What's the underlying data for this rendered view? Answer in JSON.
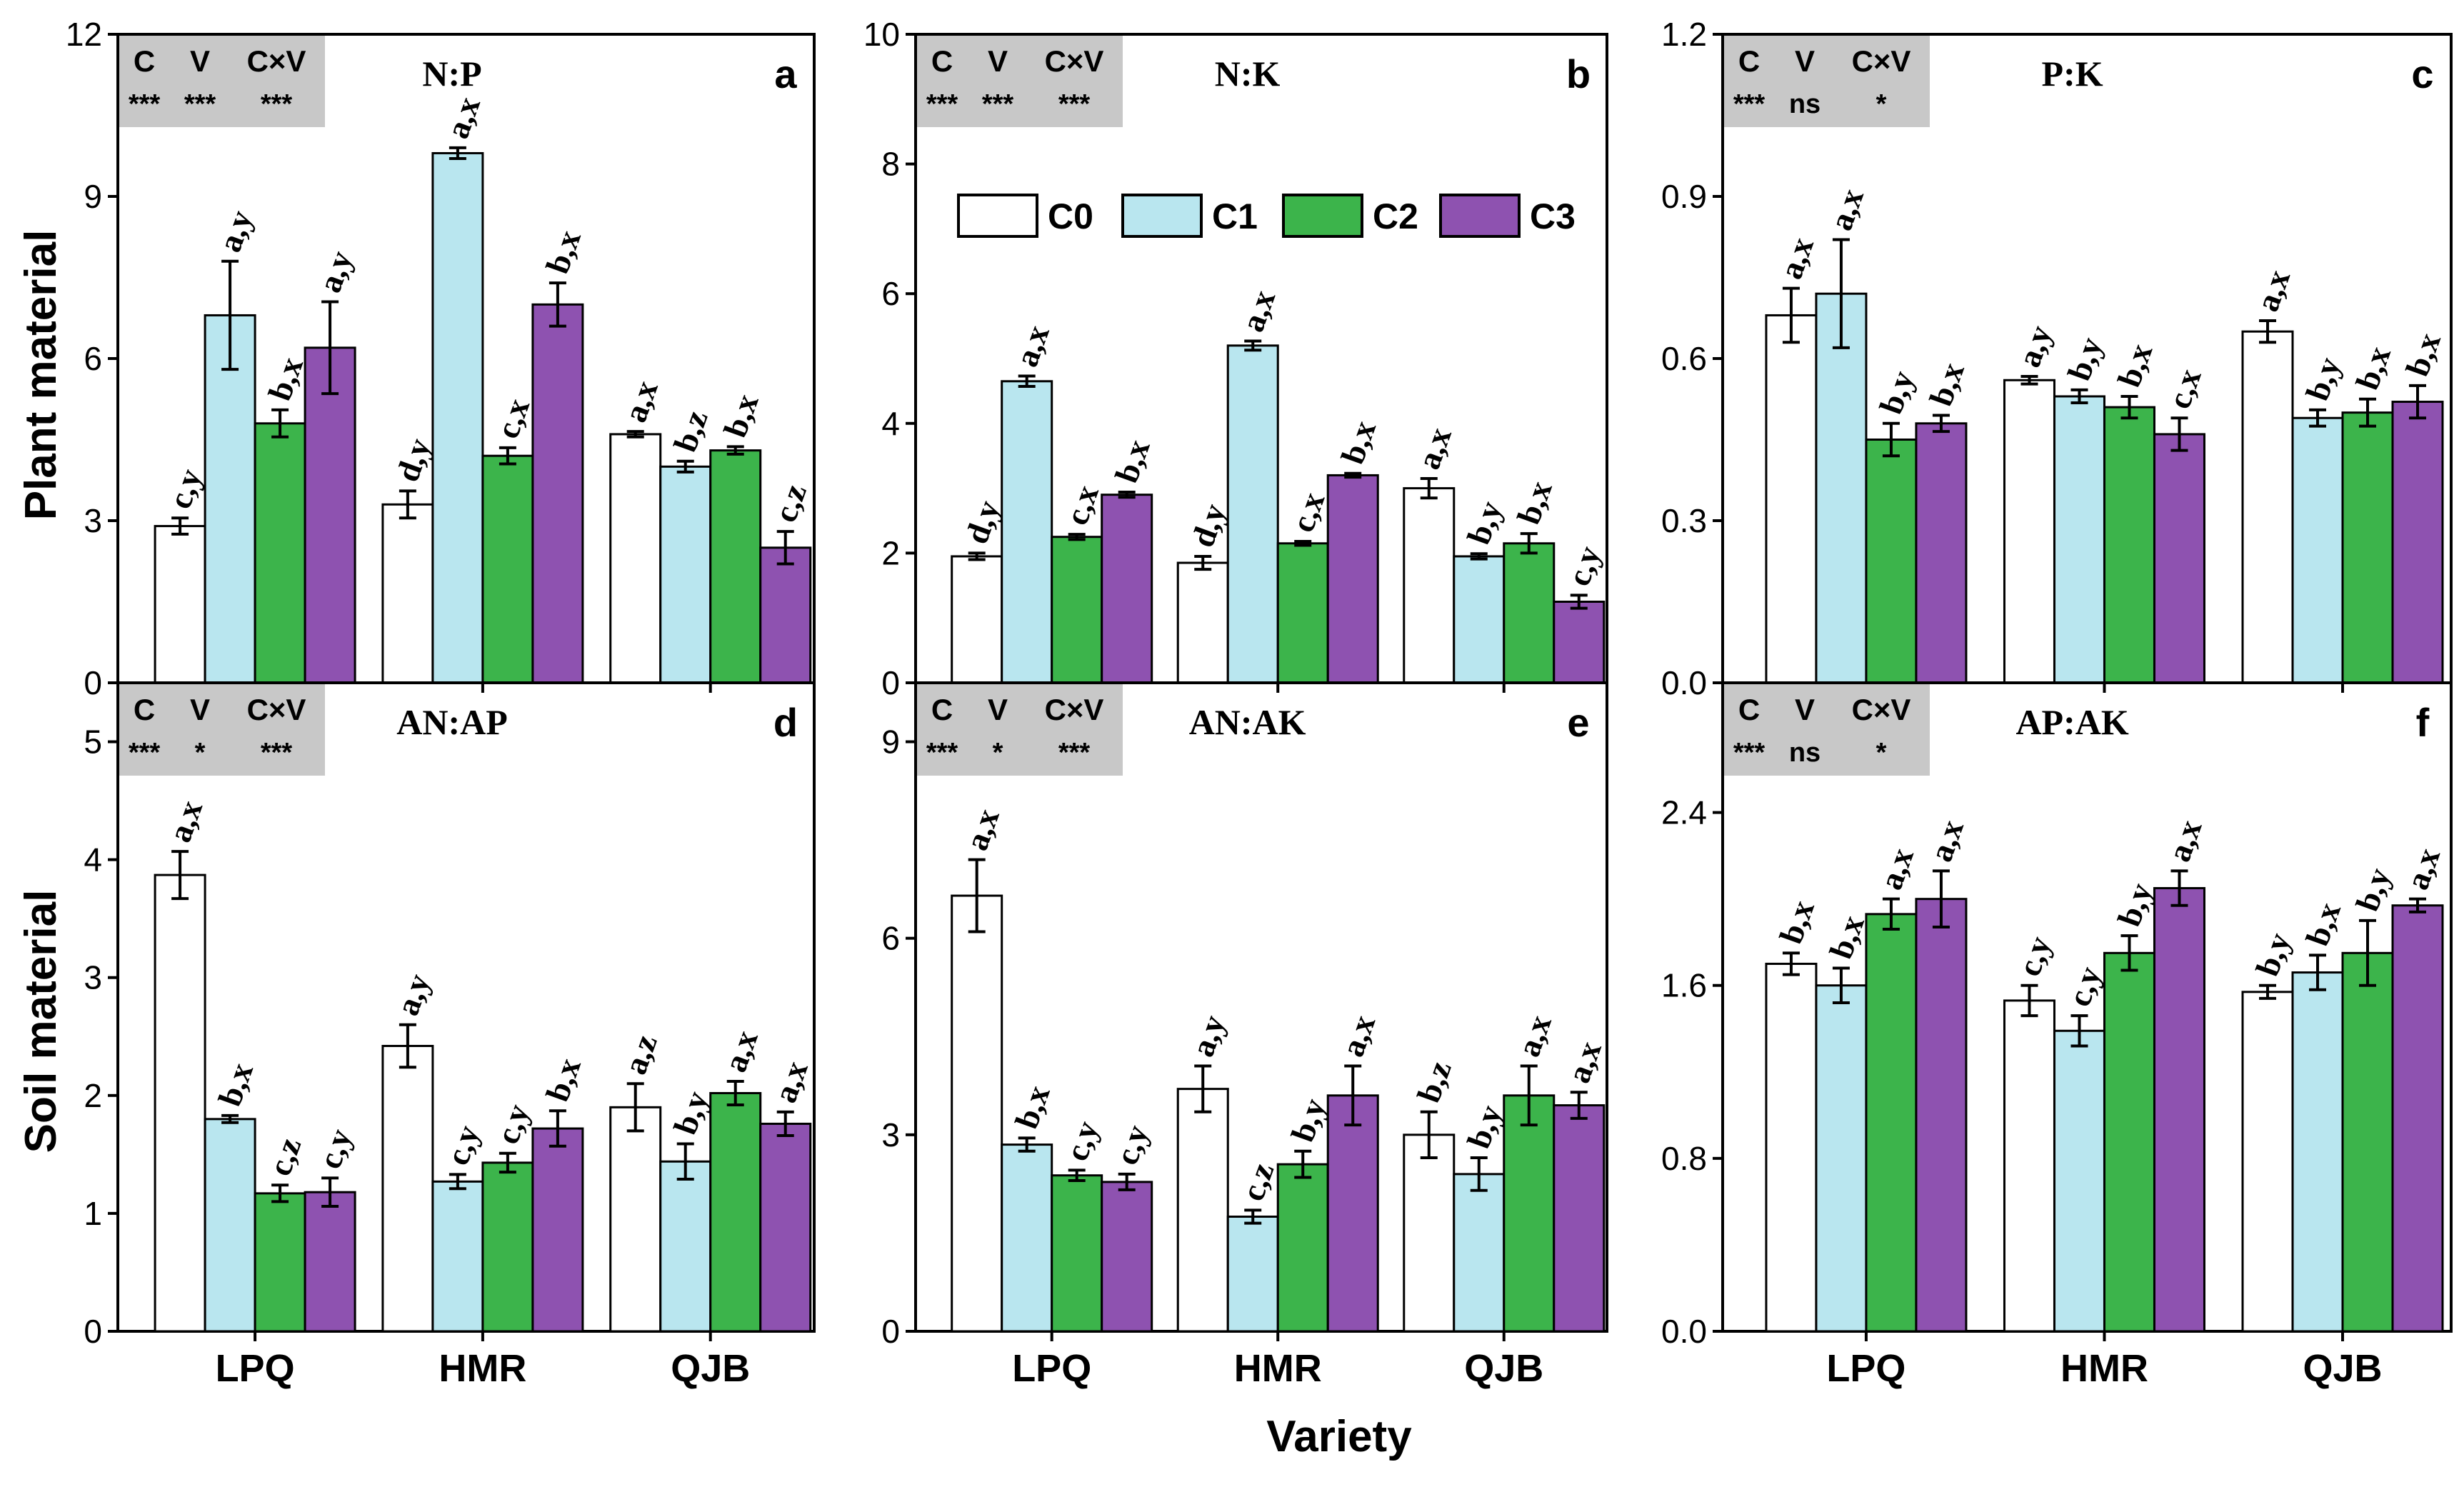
{
  "figure": {
    "xlabel": "Variety",
    "row_labels": [
      "Plant material",
      "Soil material"
    ],
    "legend": [
      {
        "name": "C0",
        "color": "#ffffff"
      },
      {
        "name": "C1",
        "color": "#b9e6ef"
      },
      {
        "name": "C2",
        "color": "#3cb44b"
      },
      {
        "name": "C3",
        "color": "#8e52b0"
      }
    ]
  },
  "chart_data": [
    {
      "type": "bar",
      "panel": "a",
      "title": "N:P",
      "ylabel": "Plant material",
      "categories": [
        "LPQ",
        "HMR",
        "QJB"
      ],
      "ylim": [
        0,
        12
      ],
      "yticks": [
        0,
        3,
        6,
        9,
        12
      ],
      "ytick_labels": [
        "0",
        "3",
        "6",
        "9",
        "12"
      ],
      "stats": {
        "headers": [
          "C",
          "V",
          "C×V"
        ],
        "values": [
          "***",
          "***",
          "***"
        ]
      },
      "series": [
        {
          "name": "C0",
          "values": [
            2.9,
            3.3,
            4.6
          ],
          "errors": [
            0.15,
            0.25,
            0.05
          ],
          "labels": [
            "c,y",
            "d,y",
            "a,x"
          ]
        },
        {
          "name": "C1",
          "values": [
            6.8,
            9.8,
            4.0
          ],
          "errors": [
            1.0,
            0.1,
            0.1
          ],
          "labels": [
            "a,y",
            "a,x",
            "b,z"
          ]
        },
        {
          "name": "C2",
          "values": [
            4.8,
            4.2,
            4.3
          ],
          "errors": [
            0.25,
            0.15,
            0.07
          ],
          "labels": [
            "b,x",
            "c,x",
            "b,x"
          ]
        },
        {
          "name": "C3",
          "values": [
            6.2,
            7.0,
            2.5
          ],
          "errors": [
            0.85,
            0.4,
            0.3
          ],
          "labels": [
            "a,y",
            "b,x",
            "c,z"
          ]
        }
      ]
    },
    {
      "type": "bar",
      "panel": "b",
      "title": "N:K",
      "ylabel": "",
      "categories": [
        "LPQ",
        "HMR",
        "QJB"
      ],
      "ylim": [
        0,
        10
      ],
      "yticks": [
        0,
        2,
        4,
        6,
        8,
        10
      ],
      "ytick_labels": [
        "0",
        "2",
        "4",
        "6",
        "8",
        "10"
      ],
      "stats": {
        "headers": [
          "C",
          "V",
          "C×V"
        ],
        "values": [
          "***",
          "***",
          "***"
        ]
      },
      "show_legend": true,
      "series": [
        {
          "name": "C0",
          "values": [
            1.95,
            1.85,
            3.0
          ],
          "errors": [
            0.05,
            0.1,
            0.15
          ],
          "labels": [
            "d,y",
            "d,y",
            "a,x"
          ]
        },
        {
          "name": "C1",
          "values": [
            4.65,
            5.2,
            1.95
          ],
          "errors": [
            0.08,
            0.07,
            0.04
          ],
          "labels": [
            "a,x",
            "a,x",
            "b,y"
          ]
        },
        {
          "name": "C2",
          "values": [
            2.25,
            2.15,
            2.15
          ],
          "errors": [
            0.04,
            0.03,
            0.15
          ],
          "labels": [
            "c,x",
            "c,x",
            "b,x"
          ]
        },
        {
          "name": "C3",
          "values": [
            2.9,
            3.2,
            1.25
          ],
          "errors": [
            0.04,
            0.03,
            0.1
          ],
          "labels": [
            "b,x",
            "b,x",
            "c,y"
          ]
        }
      ]
    },
    {
      "type": "bar",
      "panel": "c",
      "title": "P:K",
      "ylabel": "",
      "categories": [
        "LPQ",
        "HMR",
        "QJB"
      ],
      "ylim": [
        0,
        1.2
      ],
      "yticks": [
        0,
        0.3,
        0.6,
        0.9,
        1.2
      ],
      "ytick_labels": [
        "0.0",
        "0.3",
        "0.6",
        "0.9",
        "1.2"
      ],
      "stats": {
        "headers": [
          "C",
          "V",
          "C×V"
        ],
        "values": [
          "***",
          "ns",
          "*"
        ]
      },
      "series": [
        {
          "name": "C0",
          "values": [
            0.68,
            0.56,
            0.65
          ],
          "errors": [
            0.05,
            0.007,
            0.02
          ],
          "labels": [
            "a,x",
            "a,y",
            "a,x"
          ]
        },
        {
          "name": "C1",
          "values": [
            0.72,
            0.53,
            0.49
          ],
          "errors": [
            0.1,
            0.012,
            0.015
          ],
          "labels": [
            "a,x",
            "b,y",
            "b,y"
          ]
        },
        {
          "name": "C2",
          "values": [
            0.45,
            0.51,
            0.5
          ],
          "errors": [
            0.03,
            0.02,
            0.025
          ],
          "labels": [
            "b,y",
            "b,x",
            "b,x"
          ]
        },
        {
          "name": "C3",
          "values": [
            0.48,
            0.46,
            0.52
          ],
          "errors": [
            0.015,
            0.03,
            0.03
          ],
          "labels": [
            "b,x",
            "c,x",
            "b,x"
          ]
        }
      ]
    },
    {
      "type": "bar",
      "panel": "d",
      "title": "AN:AP",
      "ylabel": "Soil material",
      "categories": [
        "LPQ",
        "HMR",
        "QJB"
      ],
      "ylim": [
        0,
        5.5
      ],
      "yticks": [
        0,
        1,
        2,
        3,
        4,
        5
      ],
      "ytick_labels": [
        "0",
        "1",
        "2",
        "3",
        "4",
        "5"
      ],
      "stats": {
        "headers": [
          "C",
          "V",
          "C×V"
        ],
        "values": [
          "***",
          "*",
          "***"
        ]
      },
      "series": [
        {
          "name": "C0",
          "values": [
            3.87,
            2.42,
            1.9
          ],
          "errors": [
            0.2,
            0.18,
            0.2
          ],
          "labels": [
            "a,x",
            "a,y",
            "a,z"
          ]
        },
        {
          "name": "C1",
          "values": [
            1.8,
            1.27,
            1.44
          ],
          "errors": [
            0.03,
            0.06,
            0.15
          ],
          "labels": [
            "b,x",
            "c,y",
            "b,y"
          ]
        },
        {
          "name": "C2",
          "values": [
            1.17,
            1.43,
            2.02
          ],
          "errors": [
            0.07,
            0.08,
            0.1
          ],
          "labels": [
            "c,z",
            "c,y",
            "a,x"
          ]
        },
        {
          "name": "C3",
          "values": [
            1.18,
            1.72,
            1.76
          ],
          "errors": [
            0.12,
            0.15,
            0.1
          ],
          "labels": [
            "c,y",
            "b,x",
            "a,x"
          ]
        }
      ]
    },
    {
      "type": "bar",
      "panel": "e",
      "title": "AN:AK",
      "ylabel": "",
      "categories": [
        "LPQ",
        "HMR",
        "QJB"
      ],
      "ylim": [
        0,
        9.9
      ],
      "yticks": [
        0,
        3,
        6,
        9
      ],
      "ytick_labels": [
        "0",
        "3",
        "6",
        "9"
      ],
      "stats": {
        "headers": [
          "C",
          "V",
          "C×V"
        ],
        "values": [
          "***",
          "*",
          "***"
        ]
      },
      "series": [
        {
          "name": "C0",
          "values": [
            6.65,
            3.7,
            3.0
          ],
          "errors": [
            0.55,
            0.35,
            0.35
          ],
          "labels": [
            "a,x",
            "a,y",
            "b,z"
          ]
        },
        {
          "name": "C1",
          "values": [
            2.85,
            1.75,
            2.4
          ],
          "errors": [
            0.1,
            0.1,
            0.25
          ],
          "labels": [
            "b,x",
            "c,z",
            "b,y"
          ]
        },
        {
          "name": "C2",
          "values": [
            2.38,
            2.55,
            3.6
          ],
          "errors": [
            0.08,
            0.2,
            0.45
          ],
          "labels": [
            "c,y",
            "b,y",
            "a,x"
          ]
        },
        {
          "name": "C3",
          "values": [
            2.28,
            3.6,
            3.45
          ],
          "errors": [
            0.12,
            0.45,
            0.2
          ],
          "labels": [
            "c,y",
            "a,x",
            "a,x"
          ]
        }
      ]
    },
    {
      "type": "bar",
      "panel": "f",
      "title": "AP:AK",
      "ylabel": "",
      "categories": [
        "LPQ",
        "HMR",
        "QJB"
      ],
      "ylim": [
        0,
        3.0
      ],
      "yticks": [
        0,
        0.8,
        1.6,
        2.4
      ],
      "ytick_labels": [
        "0.0",
        "0.8",
        "1.6",
        "2.4"
      ],
      "stats": {
        "headers": [
          "C",
          "V",
          "C×V"
        ],
        "values": [
          "***",
          "ns",
          "*"
        ]
      },
      "series": [
        {
          "name": "C0",
          "values": [
            1.7,
            1.53,
            1.57
          ],
          "errors": [
            0.05,
            0.07,
            0.03
          ],
          "labels": [
            "b,x",
            "c,y",
            "b,y"
          ]
        },
        {
          "name": "C1",
          "values": [
            1.6,
            1.39,
            1.66
          ],
          "errors": [
            0.08,
            0.07,
            0.08
          ],
          "labels": [
            "b,x",
            "c,y",
            "b,x"
          ]
        },
        {
          "name": "C2",
          "values": [
            1.93,
            1.75,
            1.75
          ],
          "errors": [
            0.07,
            0.08,
            0.15
          ],
          "labels": [
            "a,x",
            "b,y",
            "b,y"
          ]
        },
        {
          "name": "C3",
          "values": [
            2.0,
            2.05,
            1.97
          ],
          "errors": [
            0.13,
            0.08,
            0.03
          ],
          "labels": [
            "a,x",
            "a,x",
            "a,x"
          ]
        }
      ]
    }
  ]
}
